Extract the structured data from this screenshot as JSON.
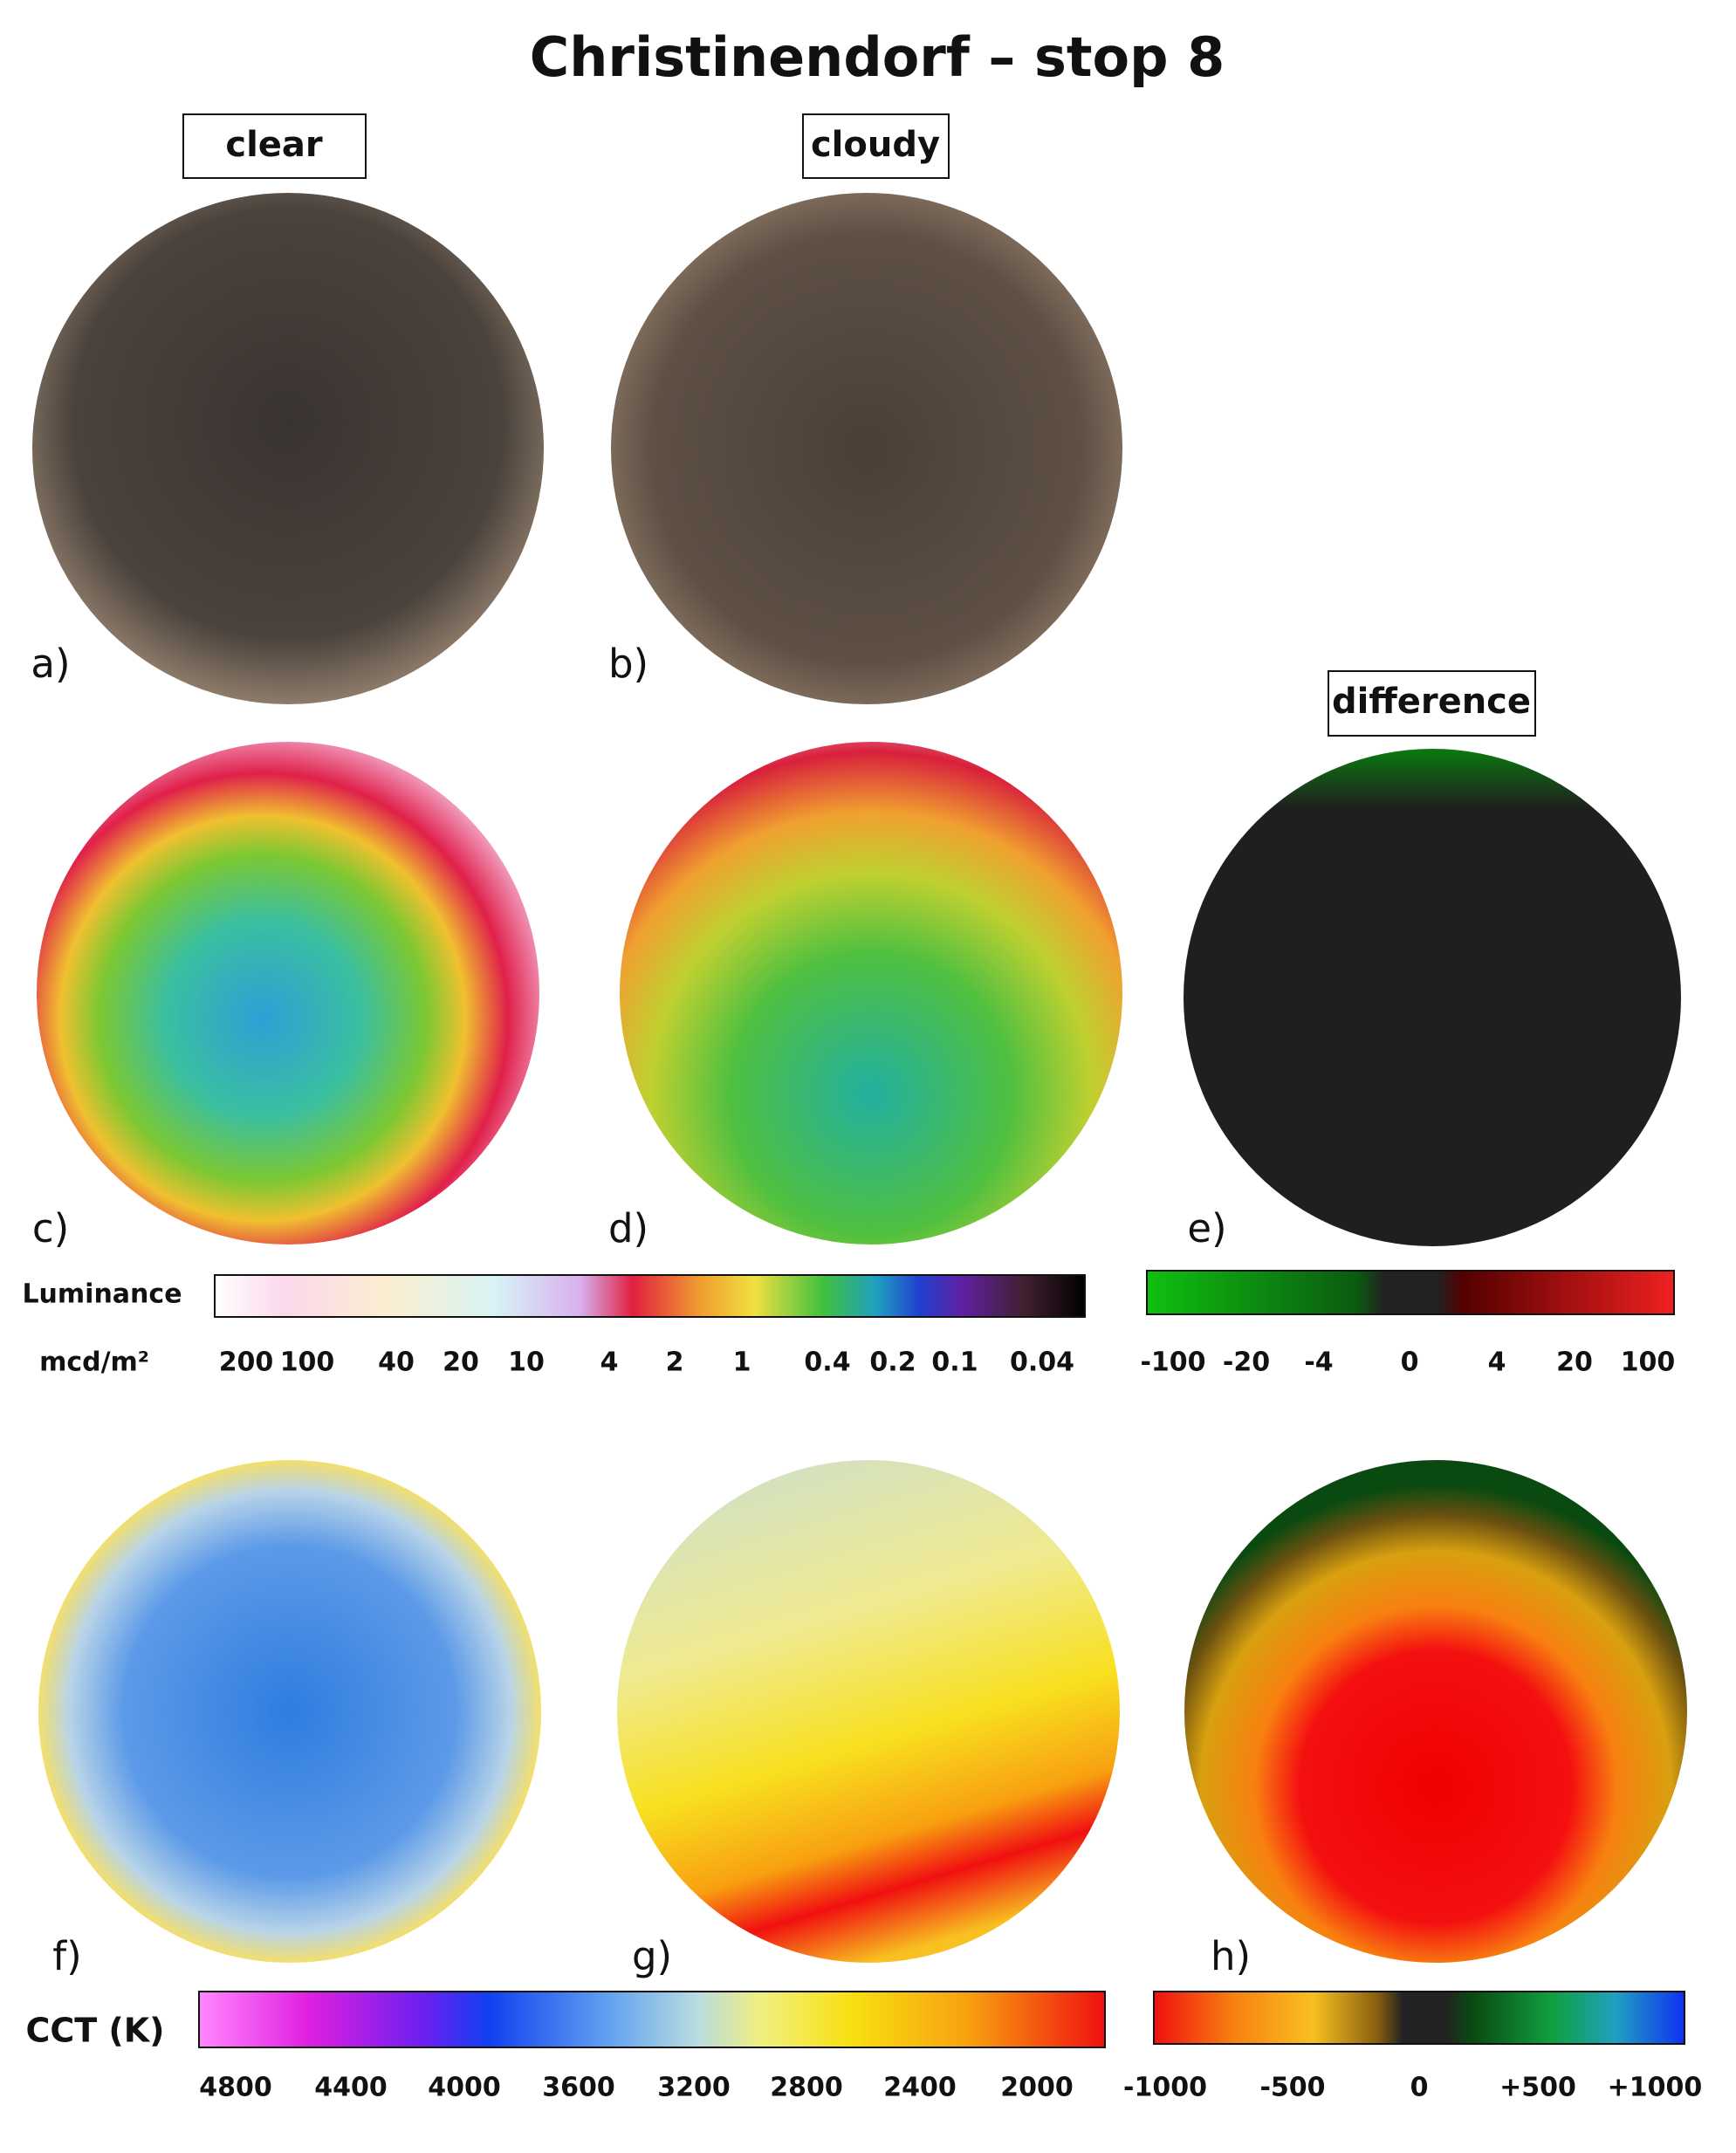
{
  "title": "Christinendorf – stop 8",
  "column_headers": [
    "clear",
    "cloudy",
    "difference"
  ],
  "panel_labels": [
    "a)",
    "b)",
    "c)",
    "d)",
    "e)",
    "f)",
    "g)",
    "h)"
  ],
  "luminance_scale": {
    "label": "Luminance",
    "unit": "mcd/m²",
    "ticks": [
      "200",
      "100",
      "40",
      "20",
      "10",
      "4",
      "2",
      "1",
      "0.4",
      "0.2",
      "0.1",
      "0.04"
    ]
  },
  "difference_scale": {
    "ticks": [
      "-100",
      "-20",
      "-4",
      "0",
      "4",
      "20",
      "100"
    ]
  },
  "cct_scale": {
    "label": "CCT (K)",
    "ticks": [
      "4800",
      "4400",
      "4000",
      "3600",
      "3200",
      "2800",
      "2400",
      "2000"
    ]
  },
  "cct_difference_scale": {
    "ticks": [
      "-1000",
      "-500",
      "0",
      "+500",
      "+1000"
    ]
  }
}
